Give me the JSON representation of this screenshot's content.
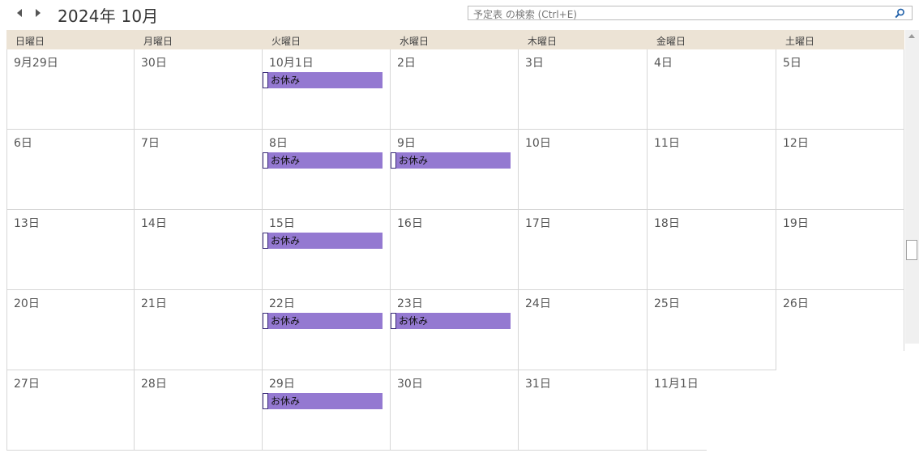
{
  "header": {
    "title": "2024年 10月",
    "prev_icon": "chevron-left-icon",
    "next_icon": "chevron-right-icon"
  },
  "search": {
    "placeholder": "予定表 の検索 (Ctrl+E)",
    "icon": "search-icon"
  },
  "weekdays": [
    "日曜日",
    "月曜日",
    "火曜日",
    "水曜日",
    "木曜日",
    "金曜日",
    "土曜日"
  ],
  "weeks": [
    [
      "9月29日",
      "30日",
      "10月1日",
      "2日",
      "3日",
      "4日",
      "5日"
    ],
    [
      "6日",
      "7日",
      "8日",
      "9日",
      "10日",
      "11日",
      "12日"
    ],
    [
      "13日",
      "14日",
      "15日",
      "16日",
      "17日",
      "18日",
      "19日"
    ],
    [
      "20日",
      "21日",
      "22日",
      "23日",
      "24日",
      "25日",
      "26日"
    ],
    [
      "27日",
      "28日",
      "29日",
      "30日",
      "31日",
      "11月1日",
      ""
    ]
  ],
  "events": [
    {
      "week": 0,
      "day": 2,
      "title": "お休み"
    },
    {
      "week": 1,
      "day": 2,
      "title": "お休み"
    },
    {
      "week": 1,
      "day": 3,
      "title": "お休み"
    },
    {
      "week": 2,
      "day": 2,
      "title": "お休み"
    },
    {
      "week": 3,
      "day": 2,
      "title": "お休み"
    },
    {
      "week": 3,
      "day": 3,
      "title": "お休み"
    },
    {
      "week": 4,
      "day": 2,
      "title": "お休み"
    }
  ],
  "colors": {
    "header_bg": "#ece3d5",
    "event_bg": "#9479d1",
    "event_border": "#3a2a7a",
    "grid_line": "#d6d6d6"
  }
}
